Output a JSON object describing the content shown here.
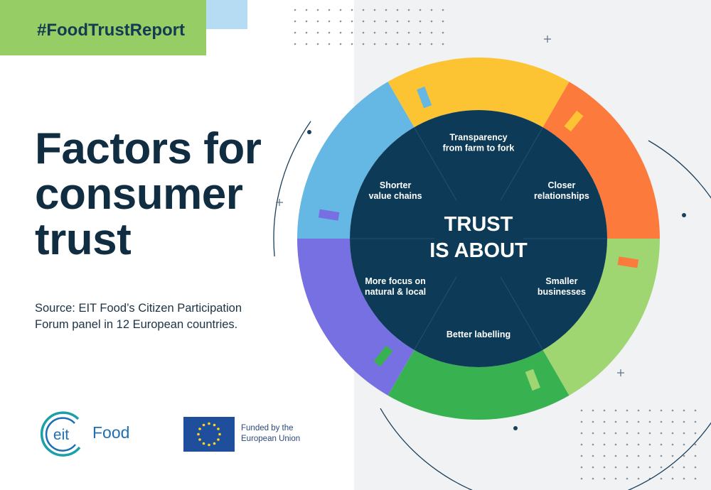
{
  "header": {
    "hashtag": "#FoodTrustReport"
  },
  "title_lines": [
    "Factors for",
    "consumer",
    "trust"
  ],
  "source_lines": [
    "Source: EIT Food’s Citizen Participation",
    "Forum panel in 12 European countries."
  ],
  "center": {
    "line1": "TRUST",
    "line2": "IS ABOUT"
  },
  "factors": [
    {
      "lines": [
        "Transparency",
        "from farm to fork"
      ]
    },
    {
      "lines": [
        "Closer",
        "relationships"
      ]
    },
    {
      "lines": [
        "Smaller",
        "businesses"
      ]
    },
    {
      "lines": [
        "Better labelling"
      ]
    },
    {
      "lines": [
        "More focus on",
        "natural & local"
      ]
    },
    {
      "lines": [
        "Shorter",
        "value chains"
      ]
    }
  ],
  "segment_colors": [
    "#fcc433",
    "#fb7a3c",
    "#9fd672",
    "#38b251",
    "#7770e3",
    "#66b8e4"
  ],
  "colors": {
    "navy": "#0d3b57",
    "title": "#102d42",
    "green_box": "#96cd64",
    "eit_blue": "#1d6fb3",
    "eu_blue": "#1f4f9c",
    "eu_star": "#ffd618"
  },
  "logos": {
    "eit_text": "eit",
    "eit_product": "Food",
    "eu_funding": [
      "Funded by the",
      "European Union"
    ]
  }
}
